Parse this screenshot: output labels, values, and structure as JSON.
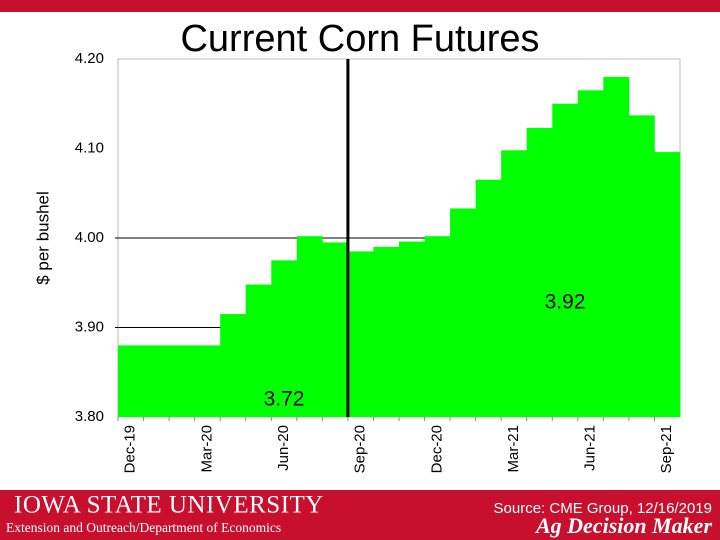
{
  "chart_data": {
    "type": "step-area",
    "title": "Current Corn Futures",
    "y_label": "$ per bushel",
    "categories": [
      "Dec-19",
      null,
      null,
      "Mar-20",
      null,
      null,
      "Jun-20",
      null,
      null,
      "Sep-20",
      null,
      null,
      "Dec-20",
      null,
      null,
      "Mar-21",
      null,
      null,
      "Jun-21",
      null,
      null,
      "Sep-21"
    ],
    "values": [
      3.88,
      3.88,
      3.88,
      3.88,
      3.915,
      3.948,
      3.975,
      4.002,
      3.995,
      3.985,
      3.99,
      3.996,
      4.002,
      4.033,
      4.065,
      4.098,
      4.123,
      4.15,
      4.165,
      4.18,
      4.137,
      4.096
    ],
    "color": "#00ff00",
    "ylim": [
      3.8,
      4.2
    ],
    "yticks": [
      {
        "value": 3.8,
        "label": "3.80"
      },
      {
        "value": 3.9,
        "label": "3.90"
      },
      {
        "value": 4.0,
        "label": "4.00"
      },
      {
        "value": 4.1,
        "label": "4.10"
      },
      {
        "value": 4.2,
        "label": "4.20"
      }
    ],
    "grid_lines": [
      3.9,
      4.0
    ],
    "annotations": [
      {
        "text": "3.72",
        "category": 6
      },
      {
        "text": "3.92",
        "category": 17
      }
    ]
  },
  "footer": {
    "university": "Iowa State University",
    "department": "Extension and Outreach/Department of Economics",
    "source": "Source: CME Group, 12/16/2019",
    "brand": "Ag Decision Maker"
  }
}
